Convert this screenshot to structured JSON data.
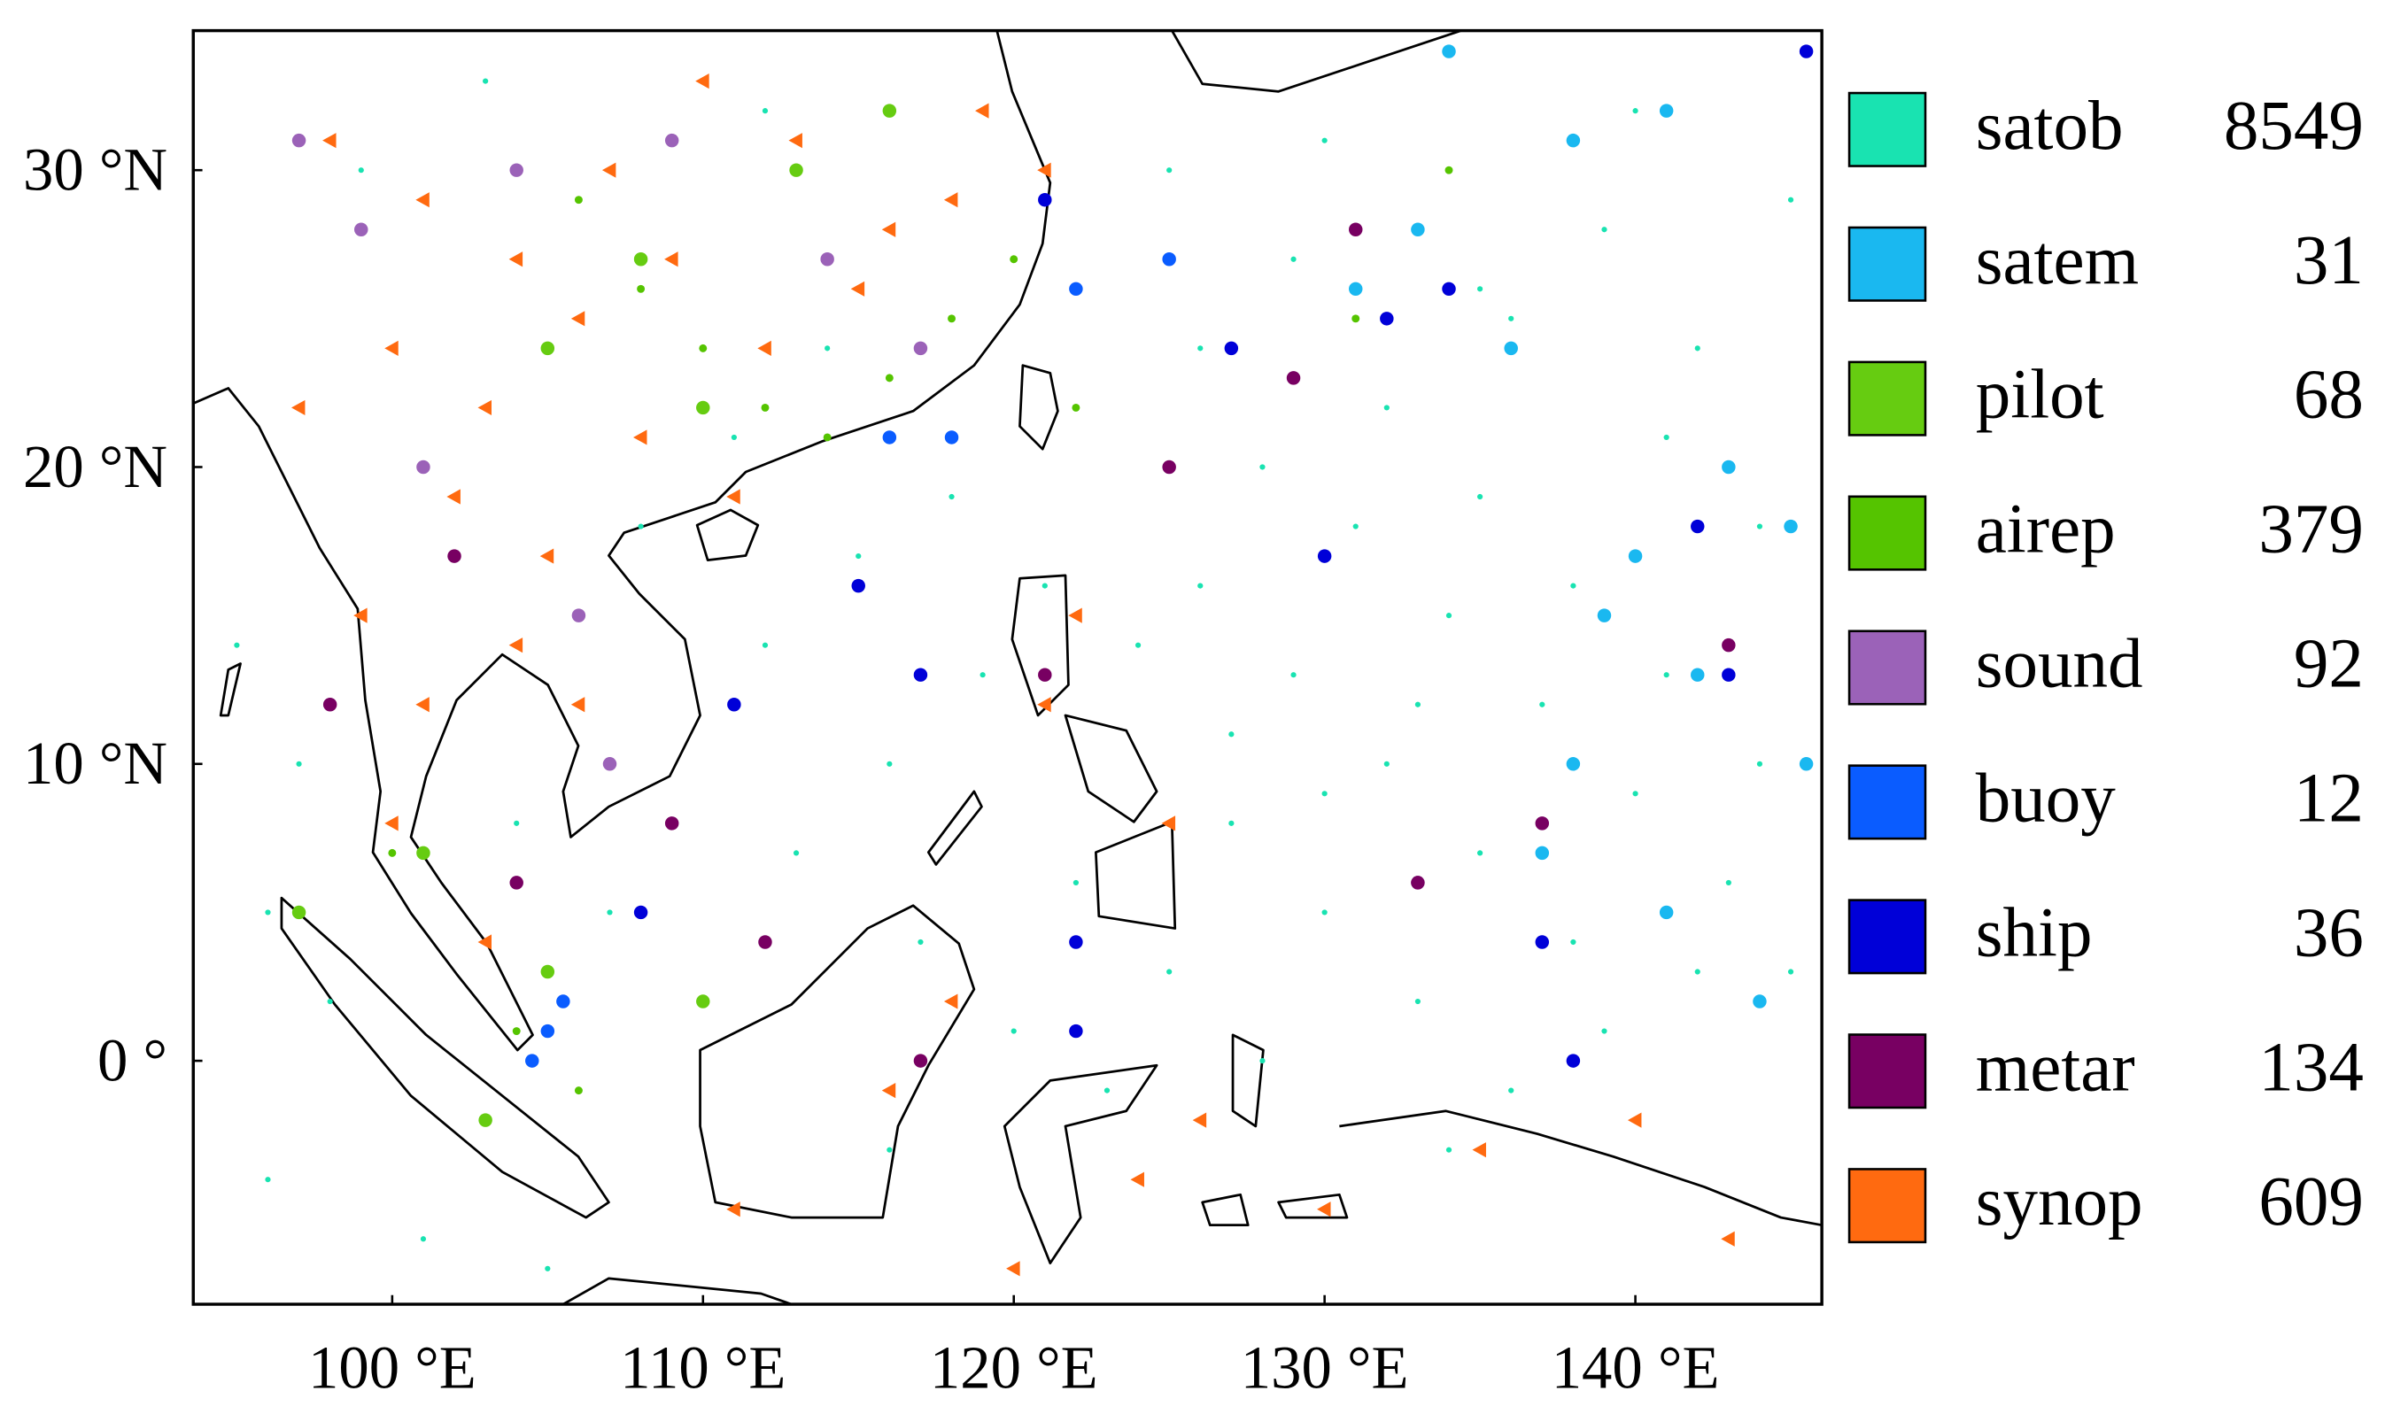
{
  "chart_data": {
    "type": "map",
    "xlim": [
      93.6,
      146
    ],
    "ylim": [
      -8.2,
      34.7
    ],
    "xticks": [
      {
        "value": 100,
        "label": "100 °E"
      },
      {
        "value": 110,
        "label": "110 °E"
      },
      {
        "value": 120,
        "label": "120 °E"
      },
      {
        "value": 130,
        "label": "130 °E"
      },
      {
        "value": 140,
        "label": "140 °E"
      }
    ],
    "yticks": [
      {
        "value": 0,
        "label": "0 °"
      },
      {
        "value": 10,
        "label": "10 °N"
      },
      {
        "value": 20,
        "label": "20 °N"
      },
      {
        "value": 30,
        "label": "30 °N"
      }
    ],
    "series": [
      {
        "name": "satob",
        "color": "#19e3b1",
        "marker": "dot",
        "count": 8549,
        "points": [
          [
            96,
            5
          ],
          [
            98,
            2
          ],
          [
            96,
            -4
          ],
          [
            101,
            -6
          ],
          [
            104,
            8
          ],
          [
            107,
            5
          ],
          [
            110,
            2
          ],
          [
            113,
            7
          ],
          [
            116,
            10
          ],
          [
            119,
            13
          ],
          [
            122,
            6
          ],
          [
            125,
            3
          ],
          [
            128,
            20
          ],
          [
            131,
            18
          ],
          [
            134,
            15
          ],
          [
            137,
            12
          ],
          [
            140,
            9
          ],
          [
            143,
            6
          ],
          [
            145,
            3
          ],
          [
            126,
            24
          ],
          [
            129,
            27
          ],
          [
            132,
            22
          ],
          [
            135,
            19
          ],
          [
            138,
            16
          ],
          [
            141,
            13
          ],
          [
            144,
            10
          ],
          [
            127,
            8
          ],
          [
            130,
            5
          ],
          [
            133,
            2
          ],
          [
            136,
            -1
          ],
          [
            139,
            1
          ],
          [
            142,
            3
          ],
          [
            117,
            4
          ],
          [
            120,
            1
          ],
          [
            123,
            -1
          ],
          [
            126,
            16
          ],
          [
            129,
            13
          ],
          [
            132,
            10
          ],
          [
            135,
            7
          ],
          [
            138,
            4
          ],
          [
            141,
            21
          ],
          [
            144,
            18
          ],
          [
            112,
            14
          ],
          [
            115,
            17
          ],
          [
            118,
            19
          ],
          [
            121,
            16
          ],
          [
            124,
            14
          ],
          [
            127,
            11
          ],
          [
            130,
            9
          ],
          [
            133,
            12
          ],
          [
            136,
            25
          ],
          [
            139,
            28
          ],
          [
            142,
            24
          ],
          [
            108,
            18
          ],
          [
            111,
            21
          ],
          [
            114,
            24
          ],
          [
            95,
            14
          ],
          [
            97,
            10
          ],
          [
            99,
            30
          ],
          [
            103,
            33
          ],
          [
            112,
            32
          ],
          [
            125,
            30
          ],
          [
            130,
            31
          ],
          [
            135,
            26
          ],
          [
            140,
            32
          ],
          [
            145,
            29
          ],
          [
            128,
            0
          ],
          [
            134,
            -3
          ],
          [
            116,
            -3
          ],
          [
            105,
            -7
          ]
        ]
      },
      {
        "name": "satem",
        "color": "#1ab8f0",
        "marker": "circle",
        "count": 31,
        "points": [
          [
            134,
            34
          ],
          [
            138,
            31
          ],
          [
            141,
            32
          ],
          [
            143,
            20
          ],
          [
            139,
            15
          ],
          [
            137,
            7
          ],
          [
            141,
            5
          ],
          [
            144,
            2
          ],
          [
            145.5,
            10
          ],
          [
            133,
            28
          ],
          [
            136,
            24
          ],
          [
            145,
            18
          ],
          [
            140,
            17
          ],
          [
            142,
            13
          ],
          [
            138,
            10
          ],
          [
            131,
            26
          ]
        ]
      },
      {
        "name": "pilot",
        "color": "#66cc11",
        "marker": "circle",
        "count": 68,
        "points": [
          [
            105,
            24
          ],
          [
            108,
            27
          ],
          [
            110,
            22
          ],
          [
            113,
            30
          ],
          [
            116,
            32
          ],
          [
            101,
            7
          ],
          [
            105,
            3
          ],
          [
            110,
            2
          ],
          [
            97,
            5
          ],
          [
            103,
            -2
          ]
        ]
      },
      {
        "name": "airep",
        "color": "#55c400",
        "marker": "small",
        "count": 379,
        "points": [
          [
            106,
            29
          ],
          [
            108,
            26
          ],
          [
            110,
            24
          ],
          [
            112,
            22
          ],
          [
            114,
            21
          ],
          [
            116,
            23
          ],
          [
            118,
            25
          ],
          [
            120,
            27
          ],
          [
            121,
            29
          ],
          [
            122,
            22
          ],
          [
            131,
            25
          ],
          [
            134,
            30
          ],
          [
            104,
            1
          ],
          [
            106,
            -1
          ],
          [
            100,
            7
          ]
        ]
      },
      {
        "name": "sound",
        "color": "#9b62b8",
        "marker": "circle",
        "count": 92,
        "points": [
          [
            97,
            31
          ],
          [
            99,
            28
          ],
          [
            104,
            30
          ],
          [
            109,
            31
          ],
          [
            114,
            27
          ],
          [
            117,
            24
          ],
          [
            101,
            20
          ],
          [
            106,
            15
          ],
          [
            107,
            10
          ],
          [
            133,
            6
          ]
        ]
      },
      {
        "name": "buoy",
        "color": "#0a5cff",
        "marker": "circle",
        "count": 12,
        "points": [
          [
            116,
            21
          ],
          [
            118,
            21
          ],
          [
            105,
            1
          ],
          [
            104.5,
            0
          ],
          [
            105.5,
            2
          ],
          [
            122,
            26
          ],
          [
            125,
            27
          ]
        ]
      },
      {
        "name": "ship",
        "color": "#0000d8",
        "marker": "circle",
        "count": 36,
        "points": [
          [
            115,
            16
          ],
          [
            117,
            13
          ],
          [
            111,
            12
          ],
          [
            108,
            5
          ],
          [
            122,
            4
          ],
          [
            122,
            1
          ],
          [
            127,
            24
          ],
          [
            130,
            17
          ],
          [
            132,
            25
          ],
          [
            134,
            26
          ],
          [
            137,
            4
          ],
          [
            138,
            0
          ],
          [
            143,
            13
          ],
          [
            142,
            18
          ],
          [
            145.5,
            34
          ],
          [
            121,
            29
          ]
        ]
      },
      {
        "name": "metar",
        "color": "#780062",
        "marker": "circle",
        "count": 134,
        "points": [
          [
            104,
            6
          ],
          [
            109,
            8
          ],
          [
            112,
            4
          ],
          [
            117,
            0
          ],
          [
            121,
            13
          ],
          [
            125,
            20
          ],
          [
            129,
            23
          ],
          [
            131,
            28
          ],
          [
            137,
            8
          ],
          [
            133,
            6
          ],
          [
            143,
            14
          ],
          [
            102,
            17
          ],
          [
            98,
            12
          ]
        ]
      },
      {
        "name": "synop",
        "color": "#ff6a10",
        "marker": "triangle",
        "count": 609,
        "points": [
          [
            98,
            31
          ],
          [
            101,
            29
          ],
          [
            104,
            27
          ],
          [
            107,
            30
          ],
          [
            110,
            33
          ],
          [
            113,
            31
          ],
          [
            116,
            28
          ],
          [
            119,
            32
          ],
          [
            100,
            24
          ],
          [
            103,
            22
          ],
          [
            106,
            25
          ],
          [
            109,
            27
          ],
          [
            112,
            24
          ],
          [
            115,
            26
          ],
          [
            118,
            29
          ],
          [
            121,
            30
          ],
          [
            102,
            19
          ],
          [
            105,
            17
          ],
          [
            108,
            21
          ],
          [
            111,
            19
          ],
          [
            97,
            22
          ],
          [
            99,
            15
          ],
          [
            101,
            12
          ],
          [
            104,
            14
          ],
          [
            106,
            12
          ],
          [
            100,
            8
          ],
          [
            103,
            4
          ],
          [
            111,
            -5
          ],
          [
            118,
            2
          ],
          [
            121,
            12
          ],
          [
            122,
            15
          ],
          [
            125,
            8
          ],
          [
            126,
            -2
          ],
          [
            130,
            -5
          ],
          [
            135,
            -3
          ],
          [
            140,
            -2
          ],
          [
            143,
            -6
          ],
          [
            124,
            -4
          ],
          [
            120,
            -7
          ],
          [
            116,
            -1
          ]
        ]
      }
    ]
  }
}
